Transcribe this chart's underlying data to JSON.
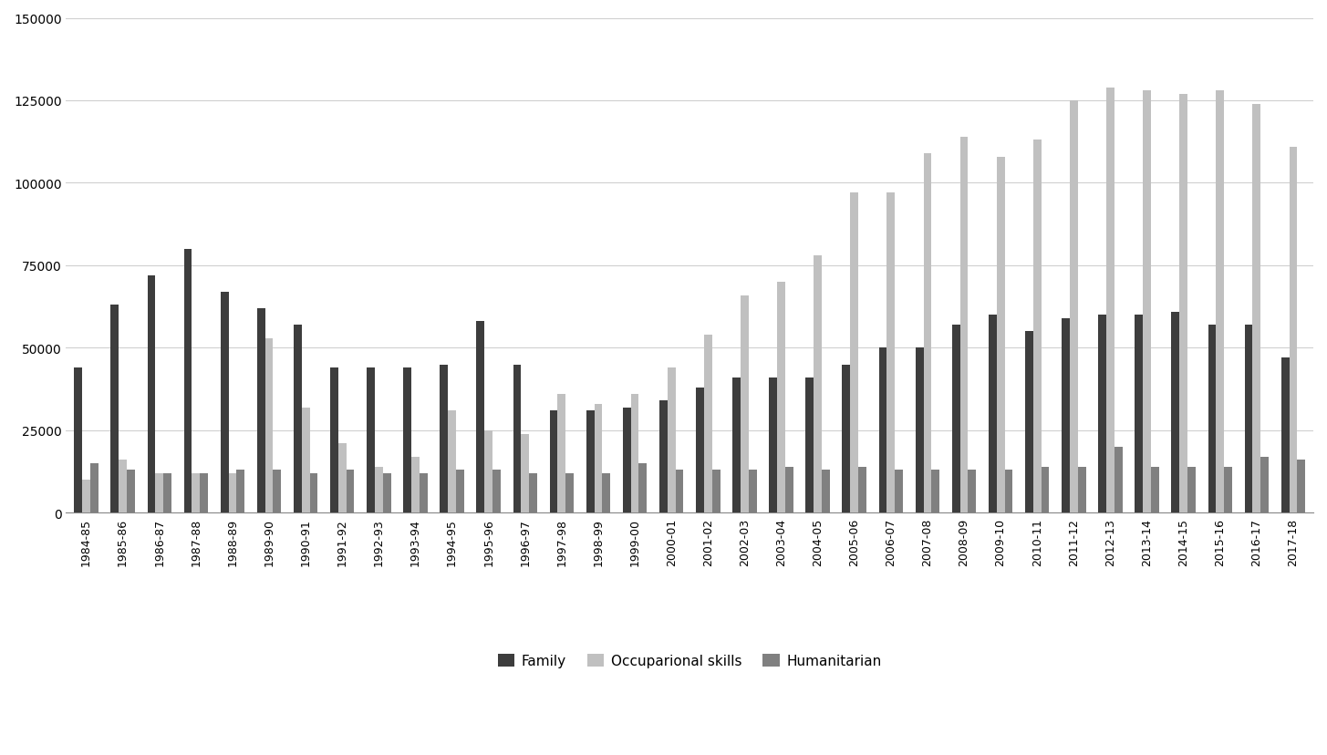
{
  "years": [
    "1984-85",
    "1985-86",
    "1986-87",
    "1987-88",
    "1988-89",
    "1989-90",
    "1990-91",
    "1991-92",
    "1992-93",
    "1993-94",
    "1994-95",
    "1995-96",
    "1996-97",
    "1997-98",
    "1998-99",
    "1999-00",
    "2000-01",
    "2001-02",
    "2002-03",
    "2003-04",
    "2004-05",
    "2005-06",
    "2006-07",
    "2007-08",
    "2008-09",
    "2009-10",
    "2010-11",
    "2011-12",
    "2012-13",
    "2013-14",
    "2014-15",
    "2015-16",
    "2016-17",
    "2017-18"
  ],
  "family": [
    44000,
    63000,
    72000,
    80000,
    67000,
    62000,
    57000,
    44000,
    44000,
    44000,
    45000,
    58000,
    45000,
    31000,
    31000,
    32000,
    34000,
    38000,
    41000,
    41000,
    41000,
    45000,
    50000,
    50000,
    57000,
    60000,
    55000,
    59000,
    60000,
    60000,
    61000,
    57000,
    57000,
    47000
  ],
  "skills": [
    10000,
    16000,
    12000,
    12000,
    12000,
    53000,
    32000,
    21000,
    14000,
    17000,
    31000,
    25000,
    24000,
    36000,
    33000,
    36000,
    44000,
    54000,
    66000,
    70000,
    78000,
    97000,
    97000,
    109000,
    114000,
    108000,
    113000,
    125000,
    129000,
    128000,
    127000,
    128000,
    124000,
    111000
  ],
  "humanitarian": [
    15000,
    13000,
    12000,
    12000,
    13000,
    13000,
    12000,
    13000,
    12000,
    12000,
    13000,
    13000,
    12000,
    12000,
    12000,
    15000,
    13000,
    13000,
    13000,
    14000,
    13000,
    14000,
    13000,
    13000,
    13000,
    13000,
    14000,
    14000,
    20000,
    14000,
    14000,
    14000,
    17000,
    16000
  ],
  "family_color": "#3d3d3d",
  "skills_color": "#c0c0c0",
  "humanitarian_color": "#808080",
  "bg_color": "#ffffff",
  "ylim": [
    0,
    150000
  ],
  "yticks": [
    0,
    25000,
    50000,
    75000,
    100000,
    125000,
    150000
  ],
  "legend_labels": [
    "Family",
    "Occuparional skills",
    "Humanitarian"
  ]
}
